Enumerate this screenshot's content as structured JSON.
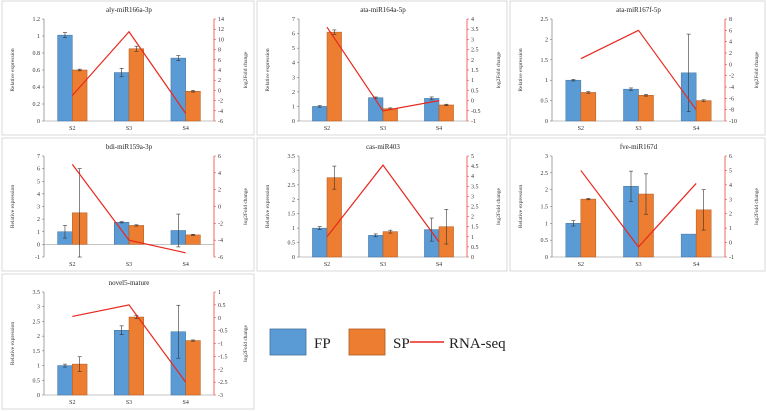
{
  "legend": {
    "items": [
      {
        "label": "FP",
        "color": "#5B9BD5",
        "kind": "bar"
      },
      {
        "label": "SP",
        "color": "#ED7D31",
        "kind": "bar"
      },
      {
        "label": "RNA-seq",
        "color": "#E8281E",
        "kind": "line"
      }
    ]
  },
  "chart_data": [
    {
      "type": "bar",
      "title": "aly-miR166a-3p",
      "categories": [
        "S2",
        "S3",
        "S4"
      ],
      "ylabel": "Relative expression",
      "y2label": "log2Fold change",
      "ylim": [
        0,
        1.2
      ],
      "yticks": [
        0,
        0.2,
        0.4,
        0.6,
        0.8,
        1,
        1.2
      ],
      "y2lim": [
        -6,
        14
      ],
      "y2ticks": [
        -6,
        -4,
        -2,
        0,
        2,
        4,
        6,
        8,
        10,
        12,
        14
      ],
      "series": [
        {
          "name": "FP",
          "values": [
            1.01,
            0.57,
            0.74
          ],
          "errors": [
            0.03,
            0.05,
            0.03
          ]
        },
        {
          "name": "SP",
          "values": [
            0.6,
            0.85,
            0.35
          ],
          "errors": [
            0.01,
            0.03,
            0.01
          ]
        }
      ],
      "line": {
        "name": "RNA-seq",
        "values": [
          -1,
          11.5,
          -4.5
        ]
      }
    },
    {
      "type": "bar",
      "title": "ata-miR164a-5p",
      "categories": [
        "S2",
        "S3",
        "S4"
      ],
      "ylabel": "Relative expression",
      "y2label": "log2Fold change",
      "ylim": [
        0,
        7
      ],
      "yticks": [
        0,
        1,
        2,
        3,
        4,
        5,
        6,
        7
      ],
      "y2lim": [
        -1,
        4
      ],
      "y2ticks": [
        -1,
        -0.5,
        0,
        0.5,
        1,
        1.5,
        2,
        2.5,
        3,
        3.5,
        4
      ],
      "series": [
        {
          "name": "FP",
          "values": [
            1.0,
            1.6,
            1.55
          ],
          "errors": [
            0.05,
            0.05,
            0.1
          ]
        },
        {
          "name": "SP",
          "values": [
            6.1,
            0.85,
            1.1
          ],
          "errors": [
            0.15,
            0.05,
            0.05
          ]
        }
      ],
      "line": {
        "name": "RNA-seq",
        "values": [
          3.6,
          -0.5,
          0
        ]
      }
    },
    {
      "type": "bar",
      "title": "ata-miR167f-5p",
      "categories": [
        "S2",
        "S3",
        "S4"
      ],
      "ylabel": "Relative expression",
      "y2label": "log2Fold change",
      "ylim": [
        0,
        2.5
      ],
      "yticks": [
        0,
        0.5,
        1,
        1.5,
        2,
        2.5
      ],
      "y2lim": [
        -10,
        8
      ],
      "y2ticks": [
        -10,
        -8,
        -6,
        -4,
        -2,
        0,
        2,
        4,
        6,
        8
      ],
      "series": [
        {
          "name": "FP",
          "values": [
            1.0,
            0.78,
            1.18
          ],
          "errors": [
            0.02,
            0.03,
            0.95
          ]
        },
        {
          "name": "SP",
          "values": [
            0.7,
            0.63,
            0.5
          ],
          "errors": [
            0.02,
            0.02,
            0.02
          ]
        }
      ],
      "line": {
        "name": "RNA-seq",
        "values": [
          1,
          6,
          -8
        ]
      }
    },
    {
      "type": "bar",
      "title": "bdi-miR159a-3p",
      "categories": [
        "S2",
        "S3",
        "S4"
      ],
      "ylabel": "Relative expression",
      "y2label": "log2Fold change",
      "ylim": [
        -1,
        7
      ],
      "yticks": [
        -1,
        0,
        1,
        2,
        3,
        4,
        5,
        6,
        7
      ],
      "y2lim": [
        -6,
        6
      ],
      "y2ticks": [
        -6,
        -4,
        -2,
        0,
        2,
        4,
        6
      ],
      "series": [
        {
          "name": "FP",
          "values": [
            1.0,
            1.75,
            1.1
          ],
          "errors": [
            0.5,
            0.05,
            1.3
          ]
        },
        {
          "name": "SP",
          "values": [
            2.5,
            1.5,
            0.75
          ],
          "errors": [
            3.5,
            0.05,
            0.05
          ]
        }
      ],
      "line": {
        "name": "RNA-seq",
        "values": [
          5,
          -4,
          -5.5
        ]
      }
    },
    {
      "type": "bar",
      "title": "cas-miR403",
      "categories": [
        "S2",
        "S3",
        "S4"
      ],
      "ylabel": "Relative expression",
      "y2label": "log2Fold change",
      "ylim": [
        0,
        3.5
      ],
      "yticks": [
        0,
        0.5,
        1,
        1.5,
        2,
        2.5,
        3,
        3.5
      ],
      "y2lim": [
        0,
        5
      ],
      "y2ticks": [
        0,
        0.5,
        1,
        1.5,
        2,
        2.5,
        3,
        3.5,
        4,
        4.5,
        5
      ],
      "series": [
        {
          "name": "FP",
          "values": [
            1.0,
            0.75,
            0.95
          ],
          "errors": [
            0.05,
            0.05,
            0.4
          ]
        },
        {
          "name": "SP",
          "values": [
            2.75,
            0.88,
            1.05
          ],
          "errors": [
            0.4,
            0.05,
            0.6
          ]
        }
      ],
      "line": {
        "name": "RNA-seq",
        "values": [
          1.0,
          4.55,
          0.75
        ]
      }
    },
    {
      "type": "bar",
      "title": "fve-miR167d",
      "categories": [
        "S2",
        "S3",
        "S4"
      ],
      "ylabel": "Relative expression",
      "y2label": "log2Fold change",
      "ylim": [
        0,
        3
      ],
      "yticks": [
        0,
        0.5,
        1,
        1.5,
        2,
        2.5,
        3
      ],
      "y2lim": [
        -1,
        6
      ],
      "y2ticks": [
        -1,
        0,
        1,
        2,
        3,
        4,
        5,
        6
      ],
      "series": [
        {
          "name": "FP",
          "values": [
            1.0,
            2.1,
            0.68
          ],
          "errors": [
            0.08,
            0.45,
            0.0
          ]
        },
        {
          "name": "SP",
          "values": [
            1.72,
            1.87,
            1.4
          ],
          "errors": [
            0.02,
            0.6,
            0.6
          ]
        }
      ],
      "line": {
        "name": "RNA-seq",
        "values": [
          5,
          -0.3,
          4.1
        ]
      }
    },
    {
      "type": "bar",
      "title": "novel5-mature",
      "categories": [
        "S2",
        "S3",
        "S4"
      ],
      "ylabel": "Relative expression",
      "y2label": "log2Fold change",
      "ylim": [
        0,
        3.5
      ],
      "yticks": [
        0,
        0.5,
        1,
        1.5,
        2,
        2.5,
        3,
        3.5
      ],
      "y2lim": [
        -3,
        1
      ],
      "y2ticks": [
        -3,
        -2.5,
        -2,
        -1.5,
        -1,
        -0.5,
        0,
        0.5,
        1
      ],
      "series": [
        {
          "name": "FP",
          "values": [
            1.0,
            2.2,
            2.15
          ],
          "errors": [
            0.05,
            0.15,
            0.9
          ]
        },
        {
          "name": "SP",
          "values": [
            1.05,
            2.65,
            1.85
          ],
          "errors": [
            0.25,
            0.05,
            0.02
          ]
        }
      ],
      "line": {
        "name": "RNA-seq",
        "values": [
          0.05,
          0.5,
          -2.5
        ]
      }
    }
  ]
}
